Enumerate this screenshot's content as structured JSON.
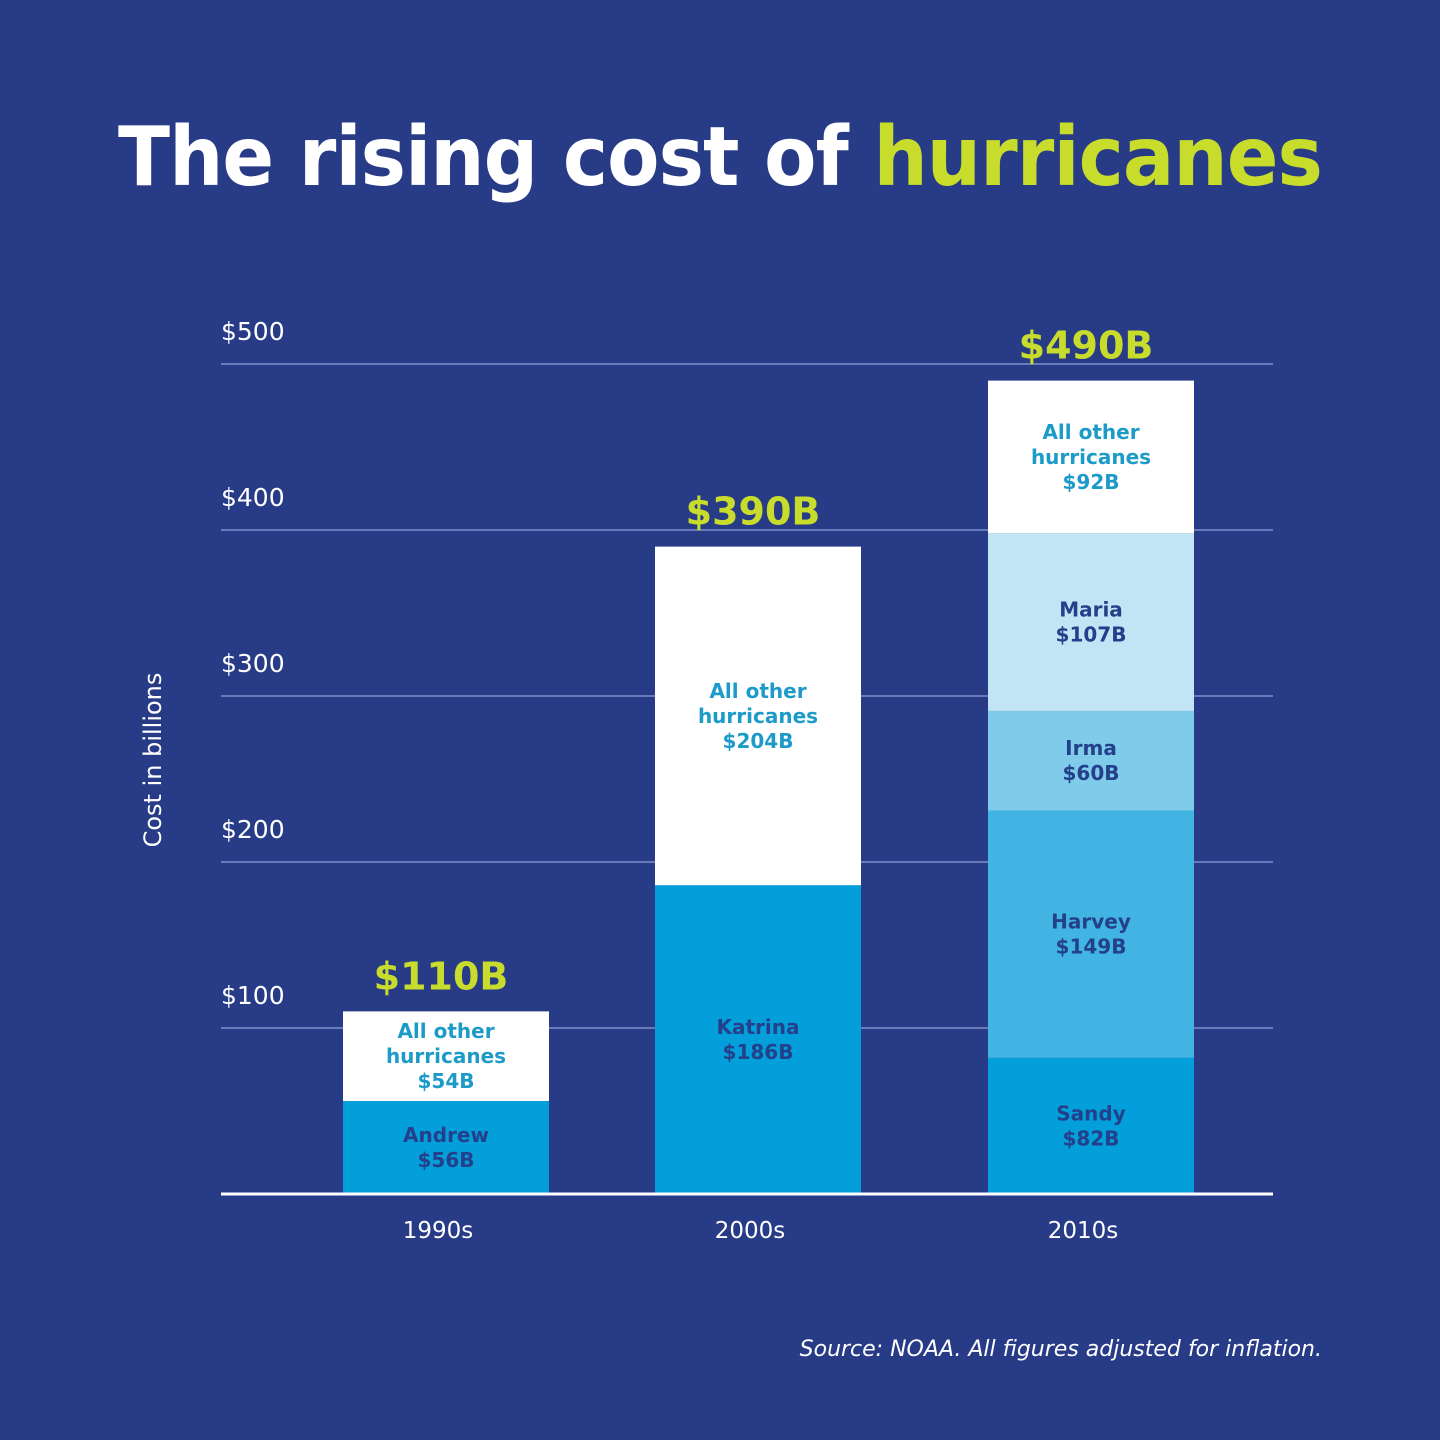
{
  "title": {
    "part1": "The rising cost of ",
    "part2": "hurricanes"
  },
  "source": "Source: NOAA. All figures adjusted for inflation.",
  "colors": {
    "background": "#283b87",
    "accent": "#c8dc2c",
    "other": "#ffffff",
    "katrina_andrew_sandy": "#039fdb",
    "harvey": "#41b4e3",
    "irma": "#7ecbea",
    "maria": "#c2e5f6",
    "label_dark": "#24408a",
    "label_other": "#1d9bc8"
  },
  "chart_data": {
    "type": "bar",
    "stacked": true,
    "ylabel": "Cost in billions",
    "ylim": [
      0,
      500
    ],
    "yticks": [
      {
        "value": 100,
        "label": "$100"
      },
      {
        "value": 200,
        "label": "$200"
      },
      {
        "value": 300,
        "label": "$300"
      },
      {
        "value": 400,
        "label": "$400"
      },
      {
        "value": 500,
        "label": "$500"
      }
    ],
    "grid": true,
    "categories": [
      "1990s",
      "2000s",
      "2010s"
    ],
    "totals": [
      {
        "value": 110,
        "label": "$110B"
      },
      {
        "value": 390,
        "label": "$390B"
      },
      {
        "value": 490,
        "label": "$490B"
      }
    ],
    "bars": [
      {
        "category": "1990s",
        "segments": [
          {
            "name": [
              "Andrew"
            ],
            "value": 56,
            "label": "$56B",
            "color": "#039fdb",
            "text_color": "#24408a"
          },
          {
            "name": [
              "All other",
              "hurricanes"
            ],
            "value": 54,
            "label": "$54B",
            "color": "#ffffff",
            "text_color": "#1d9bc8"
          }
        ]
      },
      {
        "category": "2000s",
        "segments": [
          {
            "name": [
              "Katrina"
            ],
            "value": 186,
            "label": "$186B",
            "color": "#039fdb",
            "text_color": "#24408a"
          },
          {
            "name": [
              "All other",
              "hurricanes"
            ],
            "value": 204,
            "label": "$204B",
            "color": "#ffffff",
            "text_color": "#1d9bc8"
          }
        ]
      },
      {
        "category": "2010s",
        "segments": [
          {
            "name": [
              "Sandy"
            ],
            "value": 82,
            "label": "$82B",
            "color": "#039fdb",
            "text_color": "#24408a"
          },
          {
            "name": [
              "Harvey"
            ],
            "value": 149,
            "label": "$149B",
            "color": "#41b4e3",
            "text_color": "#24408a"
          },
          {
            "name": [
              "Irma"
            ],
            "value": 60,
            "label": "$60B",
            "color": "#7ecbea",
            "text_color": "#24408a"
          },
          {
            "name": [
              "Maria"
            ],
            "value": 107,
            "label": "$107B",
            "color": "#c2e5f6",
            "text_color": "#24408a"
          },
          {
            "name": [
              "All other",
              "hurricanes"
            ],
            "value": 92,
            "label": "$92B",
            "color": "#ffffff",
            "text_color": "#1d9bc8"
          }
        ]
      }
    ]
  }
}
